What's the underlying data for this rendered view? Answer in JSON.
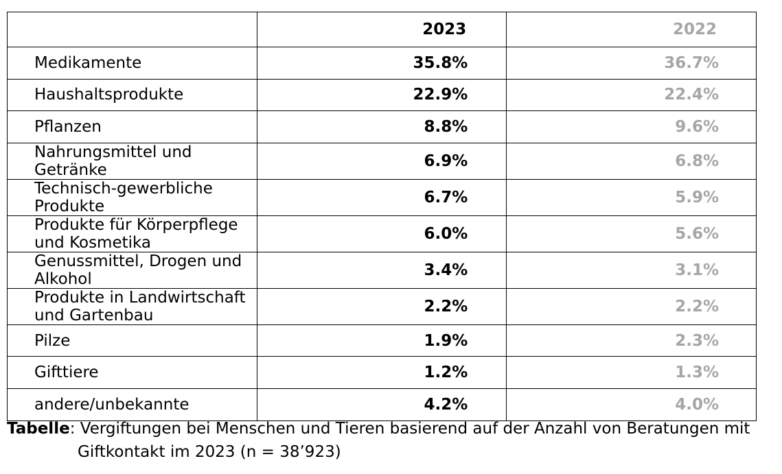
{
  "table": {
    "header": {
      "col_2023": "2023",
      "col_2022": "2022"
    },
    "rows": [
      {
        "label": "Medikamente",
        "v2023": "35.8%",
        "v2022": "36.7%"
      },
      {
        "label": "Haushaltsprodukte",
        "v2023": "22.9%",
        "v2022": "22.4%"
      },
      {
        "label": "Pflanzen",
        "v2023": "8.8%",
        "v2022": "9.6%"
      },
      {
        "label": "Nahrungsmittel und Getränke",
        "v2023": "6.9%",
        "v2022": "6.8%"
      },
      {
        "label": "Technisch-gewerbliche Produkte",
        "v2023": "6.7%",
        "v2022": "5.9%"
      },
      {
        "label": "Produkte für Körperpflege und Kosmetika",
        "v2023": "6.0%",
        "v2022": "5.6%"
      },
      {
        "label": "Genussmittel, Drogen und Alkohol",
        "v2023": "3.4%",
        "v2022": "3.1%"
      },
      {
        "label": "Produkte in Landwirtschaft und Gartenbau",
        "v2023": "2.2%",
        "v2022": "2.2%"
      },
      {
        "label": "Pilze",
        "v2023": "1.9%",
        "v2022": "2.3%"
      },
      {
        "label": "Gifttiere",
        "v2023": "1.2%",
        "v2022": "1.3%"
      },
      {
        "label": "andere/unbekannte",
        "v2023": "4.2%",
        "v2022": "4.0%"
      }
    ]
  },
  "caption": {
    "label": "Tabelle",
    "separator": ": ",
    "line1": "Vergiftungen bei Menschen und Tieren basierend auf der Anzahl von Beratungen mit",
    "line2": "Giftkontakt im 2023 (n = 38’923)"
  },
  "colors": {
    "text": "#000000",
    "muted_2022": "#a6a6a6",
    "border": "#000000",
    "background": "#ffffff"
  }
}
